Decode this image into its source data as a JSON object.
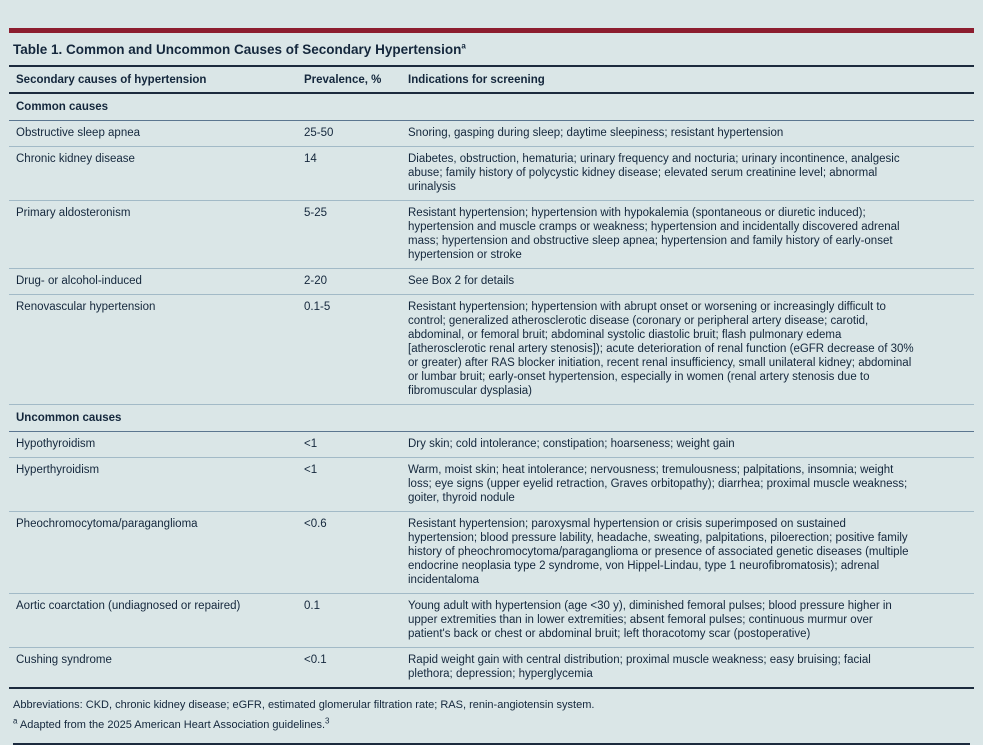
{
  "colors": {
    "background": "#dae6e7",
    "accent_red": "#8c1d2f",
    "text_navy": "#14273c",
    "rule_dark": "#1c2b3e",
    "rule_light": "#a2bac7"
  },
  "table": {
    "title": "Table 1. Common and Uncommon Causes of Secondary Hypertension",
    "title_sup": "a",
    "headers": {
      "cause": "Secondary causes of hypertension",
      "prevalence": "Prevalence, %",
      "indications": "Indications for screening"
    },
    "sections": [
      {
        "label": "Common causes",
        "rows": [
          {
            "cause": "Obstructive sleep apnea",
            "prevalence": "25-50",
            "indications": "Snoring, gasping during sleep; daytime sleepiness; resistant hypertension"
          },
          {
            "cause": "Chronic kidney disease",
            "prevalence": "14",
            "indications": "Diabetes, obstruction, hematuria; urinary frequency and nocturia; urinary incontinence, analgesic abuse; family history of polycystic kidney disease; elevated serum creatinine level; abnormal urinalysis"
          },
          {
            "cause": "Primary aldosteronism",
            "prevalence": "5-25",
            "indications": "Resistant hypertension; hypertension with hypokalemia (spontaneous or diuretic induced); hypertension and muscle cramps or weakness; hypertension and incidentally discovered adrenal mass; hypertension and obstructive sleep apnea; hypertension and family history of early-onset hypertension or stroke"
          },
          {
            "cause": "Drug- or alcohol-induced",
            "prevalence": "2-20",
            "indications": "See Box 2 for details"
          },
          {
            "cause": "Renovascular hypertension",
            "prevalence": "0.1-5",
            "indications": "Resistant hypertension; hypertension with abrupt onset or worsening or increasingly difficult to control; generalized atherosclerotic disease (coronary or peripheral artery disease; carotid, abdominal, or femoral bruit; abdominal systolic diastolic bruit; flash pulmonary edema [atherosclerotic renal artery stenosis]); acute deterioration of renal function (eGFR decrease of 30% or greater) after RAS blocker initiation, recent renal insufficiency, small unilateral kidney; abdominal or lumbar bruit; early-onset hypertension, especially in women (renal artery stenosis due to fibromuscular dysplasia)"
          }
        ]
      },
      {
        "label": "Uncommon causes",
        "rows": [
          {
            "cause": "Hypothyroidism",
            "prevalence": "<1",
            "indications": "Dry skin; cold intolerance; constipation; hoarseness; weight gain"
          },
          {
            "cause": "Hyperthyroidism",
            "prevalence": "<1",
            "indications": "Warm, moist skin; heat intolerance; nervousness; tremulousness; palpitations, insomnia; weight loss; eye signs (upper eyelid retraction, Graves orbitopathy); diarrhea; proximal muscle weakness; goiter, thyroid nodule"
          },
          {
            "cause": "Pheochromocytoma/paraganglioma",
            "prevalence": "<0.6",
            "indications": "Resistant hypertension; paroxysmal hypertension or crisis superimposed on sustained hypertension; blood pressure lability, headache, sweating, palpitations, piloerection; positive family history of pheochromocytoma/paraganglioma or presence of associated genetic diseases (multiple endocrine neoplasia type 2 syndrome, von Hippel-Lindau, type 1 neurofibromatosis); adrenal incidentaloma"
          },
          {
            "cause": "Aortic coarctation (undiagnosed or repaired)",
            "prevalence": "0.1",
            "indications": "Young adult with hypertension (age <30 y), diminished femoral pulses; blood pressure higher in upper extremities than in lower extremities; absent femoral pulses; continuous murmur over patient's back or chest or abdominal bruit; left thoracotomy scar (postoperative)"
          },
          {
            "cause": "Cushing syndrome",
            "prevalence": "<0.1",
            "indications": "Rapid weight gain with central distribution; proximal muscle weakness; easy bruising; facial plethora; depression; hyperglycemia"
          }
        ]
      }
    ]
  },
  "footer": {
    "abbreviations": "Abbreviations: CKD, chronic kidney disease; eGFR, estimated glomerular filtration rate; RAS, renin-angiotensin system.",
    "footnote_sup": "a",
    "footnote": " Adapted from the 2025 American Heart Association guidelines.",
    "footnote_ref_sup": "3"
  }
}
